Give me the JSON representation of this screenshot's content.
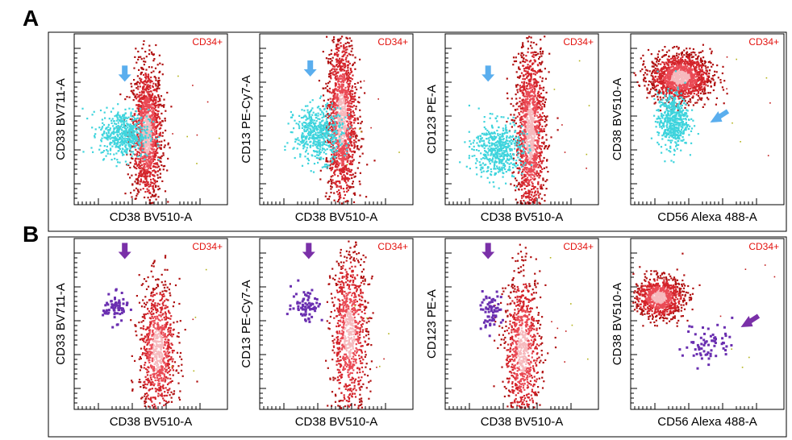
{
  "figure": {
    "rows": [
      {
        "label": "A",
        "highlight_color": "#3fd4dd",
        "arrow_color": "#5aaeee",
        "plots": [
          {
            "gate": "CD34+",
            "xlabel": "CD38 BV510-A",
            "ylabel": "CD33 BV711-A"
          },
          {
            "gate": "CD34+",
            "xlabel": "CD38 BV510-A",
            "ylabel": "CD13 PE-Cy7-A"
          },
          {
            "gate": "CD34+",
            "xlabel": "CD38 BV510-A",
            "ylabel": "CD123 PE-A"
          },
          {
            "gate": "CD34+",
            "xlabel": "CD56 Alexa 488-A",
            "ylabel": "CD38 BV510-A"
          }
        ]
      },
      {
        "label": "B",
        "highlight_color": "#6a2fb0",
        "arrow_color": "#7a30a8",
        "plots": [
          {
            "gate": "CD34+",
            "xlabel": "CD38 BV510-A",
            "ylabel": "CD33 BV711-A"
          },
          {
            "gate": "CD34+",
            "xlabel": "CD38 BV510-A",
            "ylabel": "CD13 PE-Cy7-A"
          },
          {
            "gate": "CD34+",
            "xlabel": "CD38 BV510-A",
            "ylabel": "CD123 PE-A"
          },
          {
            "gate": "CD34+",
            "xlabel": "CD56 Alexa 488-A",
            "ylabel": "CD38 BV510-A"
          }
        ]
      }
    ]
  },
  "chart_data": {
    "type": "scatter",
    "description_scale": "normalized axis units 0-1 (log-scaled flow cytometry axes, no numeric tick labels)",
    "plots": [
      {
        "id": "A1",
        "main": {
          "cx": 0.47,
          "cy": 0.42,
          "sx": 0.05,
          "sy": 0.2
        },
        "highlight": {
          "cx": 0.32,
          "cy": 0.42,
          "sx": 0.08,
          "sy": 0.07
        },
        "arrow": {
          "x": 0.33,
          "y": 0.72,
          "dir": "down"
        }
      },
      {
        "id": "A2",
        "main": {
          "cx": 0.53,
          "cy": 0.5,
          "sx": 0.05,
          "sy": 0.26
        },
        "highlight": {
          "cx": 0.38,
          "cy": 0.42,
          "sx": 0.08,
          "sy": 0.08
        },
        "arrow": {
          "x": 0.33,
          "y": 0.75,
          "dir": "down"
        }
      },
      {
        "id": "A3",
        "main": {
          "cx": 0.55,
          "cy": 0.42,
          "sx": 0.05,
          "sy": 0.27
        },
        "highlight": {
          "cx": 0.34,
          "cy": 0.33,
          "sx": 0.08,
          "sy": 0.08
        },
        "arrow": {
          "x": 0.28,
          "y": 0.72,
          "dir": "down"
        }
      },
      {
        "id": "A4",
        "main": {
          "cx": 0.32,
          "cy": 0.75,
          "sx": 0.1,
          "sy": 0.07
        },
        "highlight": {
          "cx": 0.27,
          "cy": 0.5,
          "sx": 0.05,
          "sy": 0.08
        },
        "arrow": {
          "x": 0.55,
          "y": 0.5,
          "dir": "down-left"
        }
      },
      {
        "id": "B1",
        "main": {
          "cx": 0.54,
          "cy": 0.35,
          "sx": 0.06,
          "sy": 0.2
        },
        "highlight": {
          "cx": 0.26,
          "cy": 0.6,
          "sx": 0.04,
          "sy": 0.04
        },
        "arrow": {
          "x": 0.33,
          "y": 0.88,
          "dir": "down"
        }
      },
      {
        "id": "B2",
        "main": {
          "cx": 0.58,
          "cy": 0.45,
          "sx": 0.06,
          "sy": 0.24
        },
        "highlight": {
          "cx": 0.3,
          "cy": 0.62,
          "sx": 0.05,
          "sy": 0.05
        },
        "arrow": {
          "x": 0.32,
          "y": 0.88,
          "dir": "down"
        }
      },
      {
        "id": "B3",
        "main": {
          "cx": 0.5,
          "cy": 0.35,
          "sx": 0.06,
          "sy": 0.22
        },
        "highlight": {
          "cx": 0.28,
          "cy": 0.58,
          "sx": 0.04,
          "sy": 0.05
        },
        "arrow": {
          "x": 0.28,
          "y": 0.88,
          "dir": "down"
        }
      },
      {
        "id": "B4",
        "main": {
          "cx": 0.18,
          "cy": 0.66,
          "sx": 0.08,
          "sy": 0.06
        },
        "highlight": {
          "cx": 0.5,
          "cy": 0.4,
          "sx": 0.08,
          "sy": 0.06
        },
        "arrow": {
          "x": 0.75,
          "y": 0.5,
          "dir": "down-left"
        }
      }
    ]
  }
}
